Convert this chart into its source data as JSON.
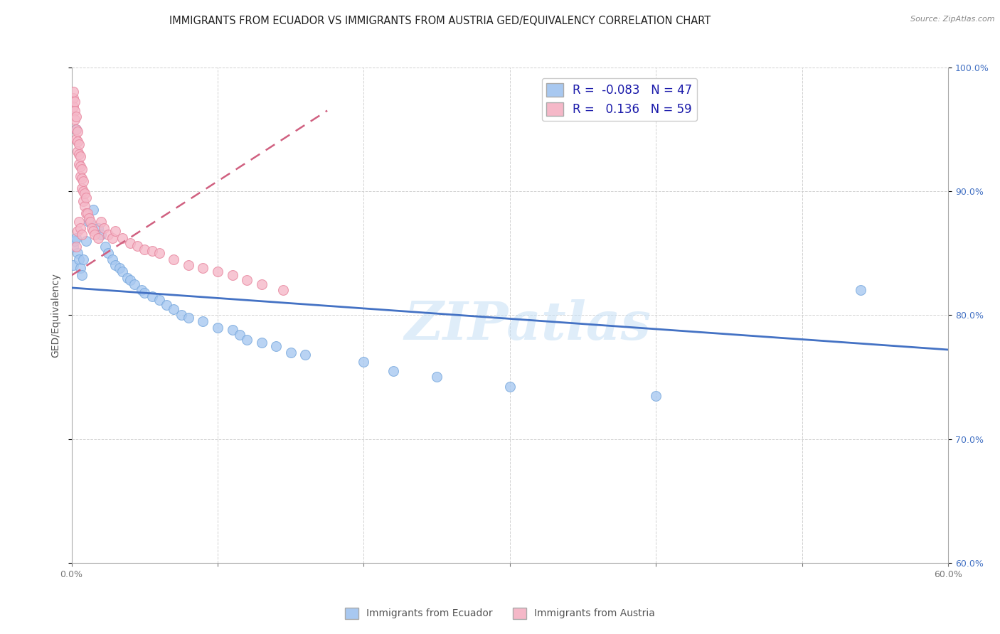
{
  "title": "IMMIGRANTS FROM ECUADOR VS IMMIGRANTS FROM AUSTRIA GED/EQUIVALENCY CORRELATION CHART",
  "source": "Source: ZipAtlas.com",
  "ylabel": "GED/Equivalency",
  "xlim": [
    0.0,
    0.6
  ],
  "ylim": [
    0.6,
    1.0
  ],
  "xticks": [
    0.0,
    0.1,
    0.2,
    0.3,
    0.4,
    0.5,
    0.6
  ],
  "yticks": [
    0.6,
    0.7,
    0.8,
    0.9,
    1.0
  ],
  "xtick_labels": [
    "0.0%",
    "",
    "",
    "",
    "",
    "",
    "60.0%"
  ],
  "ytick_labels_right": [
    "60.0%",
    "70.0%",
    "80.0%",
    "90.0%",
    "100.0%"
  ],
  "ecuador_color": "#A8C8F0",
  "ecuador_edge_color": "#7AAADE",
  "austria_color": "#F5B8C8",
  "austria_edge_color": "#E888A0",
  "ecuador_R": -0.083,
  "ecuador_N": 47,
  "austria_R": 0.136,
  "austria_N": 59,
  "ecuador_line_color": "#4472C4",
  "austria_line_color": "#D06080",
  "watermark": "ZIPatlas",
  "ecuador_line_x0": 0.0,
  "ecuador_line_y0": 0.822,
  "ecuador_line_x1": 0.6,
  "ecuador_line_y1": 0.772,
  "austria_line_x0": 0.0,
  "austria_line_y0": 0.832,
  "austria_line_x1": 0.175,
  "austria_line_y1": 0.965,
  "ecuador_x": [
    0.001,
    0.001,
    0.002,
    0.003,
    0.004,
    0.005,
    0.006,
    0.007,
    0.008,
    0.01,
    0.012,
    0.015,
    0.018,
    0.02,
    0.023,
    0.025,
    0.028,
    0.03,
    0.033,
    0.035,
    0.038,
    0.04,
    0.043,
    0.048,
    0.05,
    0.055,
    0.06,
    0.065,
    0.07,
    0.075,
    0.08,
    0.09,
    0.1,
    0.11,
    0.115,
    0.12,
    0.13,
    0.14,
    0.15,
    0.16,
    0.2,
    0.22,
    0.25,
    0.3,
    0.4,
    0.54,
    0.003
  ],
  "ecuador_y": [
    0.84,
    0.855,
    0.86,
    0.862,
    0.85,
    0.845,
    0.838,
    0.832,
    0.845,
    0.86,
    0.875,
    0.885,
    0.87,
    0.865,
    0.855,
    0.85,
    0.845,
    0.84,
    0.838,
    0.835,
    0.83,
    0.828,
    0.825,
    0.82,
    0.818,
    0.815,
    0.812,
    0.808,
    0.805,
    0.8,
    0.798,
    0.795,
    0.79,
    0.788,
    0.784,
    0.78,
    0.778,
    0.775,
    0.77,
    0.768,
    0.762,
    0.755,
    0.75,
    0.742,
    0.735,
    0.82,
    0.95
  ],
  "austria_x": [
    0.001,
    0.001,
    0.001,
    0.002,
    0.002,
    0.002,
    0.003,
    0.003,
    0.003,
    0.004,
    0.004,
    0.004,
    0.005,
    0.005,
    0.005,
    0.006,
    0.006,
    0.006,
    0.007,
    0.007,
    0.007,
    0.008,
    0.008,
    0.008,
    0.009,
    0.009,
    0.01,
    0.01,
    0.011,
    0.012,
    0.013,
    0.014,
    0.015,
    0.016,
    0.018,
    0.02,
    0.022,
    0.025,
    0.028,
    0.03,
    0.035,
    0.04,
    0.045,
    0.05,
    0.055,
    0.06,
    0.07,
    0.08,
    0.09,
    0.1,
    0.11,
    0.12,
    0.13,
    0.145,
    0.003,
    0.004,
    0.005,
    0.006,
    0.007
  ],
  "austria_y": [
    0.975,
    0.968,
    0.98,
    0.972,
    0.965,
    0.958,
    0.96,
    0.95,
    0.942,
    0.948,
    0.94,
    0.932,
    0.938,
    0.93,
    0.922,
    0.928,
    0.92,
    0.912,
    0.918,
    0.91,
    0.902,
    0.908,
    0.9,
    0.892,
    0.898,
    0.888,
    0.895,
    0.882,
    0.882,
    0.878,
    0.875,
    0.87,
    0.868,
    0.865,
    0.862,
    0.875,
    0.87,
    0.865,
    0.862,
    0.868,
    0.862,
    0.858,
    0.856,
    0.853,
    0.852,
    0.85,
    0.845,
    0.84,
    0.838,
    0.835,
    0.832,
    0.828,
    0.825,
    0.82,
    0.855,
    0.868,
    0.875,
    0.87,
    0.865
  ],
  "title_fontsize": 10.5,
  "axis_label_fontsize": 10,
  "tick_fontsize": 9,
  "legend_fontsize": 12,
  "marker_size": 100
}
